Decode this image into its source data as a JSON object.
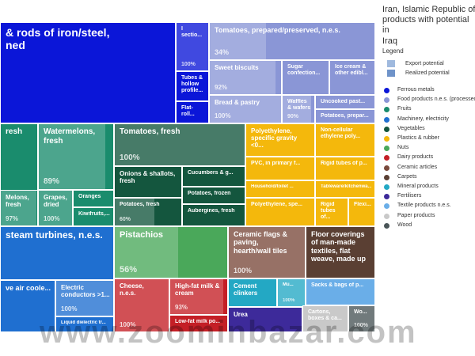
{
  "chart_data": {
    "type": "treemap",
    "title": "Iran, Islamic Republic of\nproducts with potential in\nIraq",
    "legend": {
      "title": "Legend",
      "potential_items": [
        {
          "label": "Export potential",
          "color": "#9fb9de"
        },
        {
          "label": "Realized potential",
          "color": "#6f93c9"
        }
      ],
      "categories": [
        {
          "label": "Ferrous metals",
          "color": "#0b16d8"
        },
        {
          "label": "Food products n.e.s. (processed)",
          "color": "#8a96d6"
        },
        {
          "label": "Fruits",
          "color": "#1a8c6d"
        },
        {
          "label": "Machinery, electricity",
          "color": "#1f6fd0"
        },
        {
          "label": "Vegetables",
          "color": "#14563e"
        },
        {
          "label": "Plastics & rubber",
          "color": "#f4b80c"
        },
        {
          "label": "Nuts",
          "color": "#4aa85a"
        },
        {
          "label": "Dairy products",
          "color": "#c41f26"
        },
        {
          "label": "Ceramic articles",
          "color": "#7a4a3c"
        },
        {
          "label": "Carpets",
          "color": "#5a3f33"
        },
        {
          "label": "Mineral products",
          "color": "#23a8c4"
        },
        {
          "label": "Fertilisers",
          "color": "#3d2a9a"
        },
        {
          "label": "Textile products n.e.s.",
          "color": "#6aaee8"
        },
        {
          "label": "Paper products",
          "color": "#c9c9c9"
        },
        {
          "label": "Wood",
          "color": "#4a5558"
        }
      ]
    },
    "tiles": [
      {
        "label": "& rods of iron/steel,\nned",
        "pct": "",
        "realized": 0,
        "category": "Ferrous metals"
      },
      {
        "label": "I\nsectio...",
        "pct": "100%",
        "realized": 100,
        "category": "Ferrous metals"
      },
      {
        "label": "Tubes &\nhollow\nprofile...",
        "pct": "",
        "realized": 0,
        "category": "Ferrous metals"
      },
      {
        "label": "Flat-roll...",
        "pct": "",
        "realized": 0,
        "category": "Ferrous metals"
      },
      {
        "label": "Tomatoes, prepared/preserved, n.e.s.",
        "pct": "34%",
        "realized": 34,
        "category": "Food products n.e.s. (processed)"
      },
      {
        "label": "Sweet biscuits",
        "pct": "92%",
        "realized": 92,
        "category": "Food products n.e.s. (processed)"
      },
      {
        "label": "Sugar\nconfection...",
        "pct": "",
        "realized": 0,
        "category": "Food products n.e.s. (processed)"
      },
      {
        "label": "Ice cream &\nother edibl...",
        "pct": "",
        "realized": 0,
        "category": "Food products n.e.s. (processed)"
      },
      {
        "label": "Bread & pastry",
        "pct": "100%",
        "realized": 100,
        "category": "Food products n.e.s. (processed)"
      },
      {
        "label": "Waffles\n& wafers",
        "pct": "90%",
        "realized": 90,
        "category": "Food products n.e.s. (processed)"
      },
      {
        "label": "Uncooked past...",
        "pct": "",
        "realized": 0,
        "category": "Food products n.e.s. (processed)"
      },
      {
        "label": "Potatoes, prepar...",
        "pct": "",
        "realized": 0,
        "category": "Food products n.e.s. (processed)"
      },
      {
        "label": "resh",
        "pct": "",
        "realized": 0,
        "category": "Fruits"
      },
      {
        "label": "Watermelons,\nfresh",
        "pct": "89%",
        "realized": 89,
        "category": "Fruits"
      },
      {
        "label": "Melons,\nfresh",
        "pct": "97%",
        "realized": 97,
        "category": "Fruits"
      },
      {
        "label": "Grapes,\ndried",
        "pct": "100%",
        "realized": 100,
        "category": "Fruits"
      },
      {
        "label": "Oranges",
        "pct": "",
        "realized": 0,
        "category": "Fruits"
      },
      {
        "label": "Kiwifruits,...",
        "pct": "",
        "realized": 0,
        "category": "Fruits"
      },
      {
        "label": "Tomatoes, fresh",
        "pct": "100%",
        "realized": 100,
        "category": "Vegetables"
      },
      {
        "label": "Onions & shallots,\nfresh",
        "pct": "",
        "realized": 0,
        "category": "Vegetables"
      },
      {
        "label": "Cucumbers & g...",
        "pct": "",
        "realized": 0,
        "category": "Vegetables"
      },
      {
        "label": "Potatoes, frozen",
        "pct": "",
        "realized": 0,
        "category": "Vegetables"
      },
      {
        "label": "Potatoes, fresh",
        "pct": "60%",
        "realized": 60,
        "category": "Vegetables"
      },
      {
        "label": "Aubergines, fresh",
        "pct": "",
        "realized": 0,
        "category": "Vegetables"
      },
      {
        "label": "Polyethylene,\nspecific gravity <0...",
        "pct": "",
        "realized": 0,
        "category": "Plastics & rubber"
      },
      {
        "label": "Non-cellular\nethylene poly...",
        "pct": "",
        "realized": 0,
        "category": "Plastics & rubber"
      },
      {
        "label": "PVC, in primary f...",
        "pct": "",
        "realized": 0,
        "category": "Plastics & rubber"
      },
      {
        "label": "Rigid tubes of p...",
        "pct": "",
        "realized": 0,
        "category": "Plastics & rubber"
      },
      {
        "label": "Household/toilet ...",
        "pct": "",
        "realized": 0,
        "category": "Plastics & rubber"
      },
      {
        "label": "Tableware/kitchenwa...",
        "pct": "",
        "realized": 0,
        "category": "Plastics & rubber"
      },
      {
        "label": "Polyethylene, spe...",
        "pct": "",
        "realized": 0,
        "category": "Plastics & rubber"
      },
      {
        "label": "Rigid\ntubes of...",
        "pct": "",
        "realized": 0,
        "category": "Plastics & rubber"
      },
      {
        "label": "Flexi...",
        "pct": "",
        "realized": 0,
        "category": "Plastics & rubber"
      },
      {
        "label": "steam turbines, n.e.s.",
        "pct": "",
        "realized": 0,
        "category": "Machinery, electricity"
      },
      {
        "label": "ve air coole...",
        "pct": "",
        "realized": 0,
        "category": "Machinery, electricity"
      },
      {
        "label": "Electric\nconductors >1...",
        "pct": "100%",
        "realized": 100,
        "category": "Machinery, electricity"
      },
      {
        "label": "Liquid dielectric tr...",
        "pct": "",
        "realized": 0,
        "category": "Machinery, electricity"
      },
      {
        "label": "Pistachios",
        "pct": "56%",
        "realized": 56,
        "category": "Nuts"
      },
      {
        "label": "Ceramic flags &\npaving,\nhearth/wall tiles",
        "pct": "100%",
        "realized": 100,
        "category": "Ceramic articles"
      },
      {
        "label": "Floor coverings\nof man-made\ntextiles, flat\nweave, made up",
        "pct": "",
        "realized": 0,
        "category": "Carpets"
      },
      {
        "label": "Cheese,\nn.e.s.",
        "pct": "100%",
        "realized": 100,
        "category": "Dairy products"
      },
      {
        "label": "High-fat milk &\ncream",
        "pct": "93%",
        "realized": 93,
        "category": "Dairy products"
      },
      {
        "label": "Low-fat milk po...",
        "pct": "",
        "realized": 0,
        "category": "Dairy products"
      },
      {
        "label": "Cement\nclinkers",
        "pct": "",
        "realized": 0,
        "category": "Mineral products"
      },
      {
        "label": "Mu...",
        "pct": "100%",
        "realized": 100,
        "category": "Mineral products"
      },
      {
        "label": "Urea",
        "pct": "",
        "realized": 0,
        "category": "Fertilisers"
      },
      {
        "label": "Sacks & bags of p...",
        "pct": "",
        "realized": 0,
        "category": "Textile products n.e.s."
      },
      {
        "label": "Cartons,\nboxes & ca...",
        "pct": "",
        "realized": 0,
        "category": "Paper products"
      },
      {
        "label": "Wo...",
        "pct": "100%",
        "realized": 100,
        "category": "Wood"
      }
    ]
  },
  "watermark": "www.zoominbazar.com"
}
